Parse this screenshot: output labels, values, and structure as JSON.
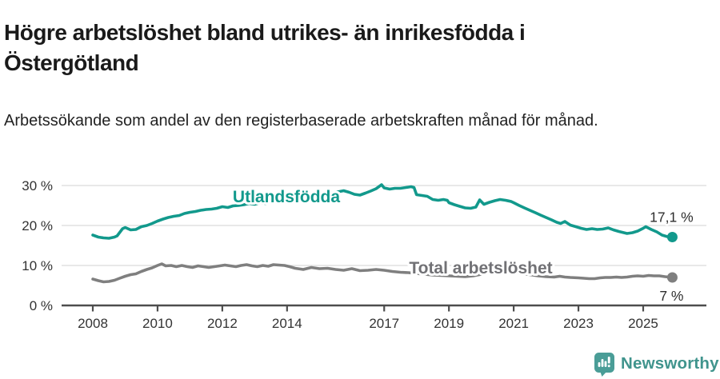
{
  "title": "Högre arbetslöshet bland utrikes- än inrikesfödda i Östergötland",
  "subtitle": "Arbetssökande som andel av den registerbaserade arbetskraften månad för månad.",
  "footer": {
    "brand": "Newsworthy",
    "logo_icon": "bar-chart-speech-bubble-icon"
  },
  "colors": {
    "teal": "#12998C",
    "gray": "#7F7F7F",
    "gray_label": "#717175",
    "gridline": "#DBDBDB",
    "axis": "#4D4D4D",
    "tick_text": "#333333",
    "title_text": "#1A1A1A",
    "body_text": "#222222",
    "end_label_text": "#2E2E2E",
    "logo_teal": "#4A9D97",
    "wordmark_teal": "#40948D"
  },
  "chart_data": {
    "type": "line",
    "unit": "%",
    "grid": "horizontal",
    "x_axis": {
      "range": [
        2007.85,
        2026.2
      ],
      "ticks": [
        {
          "value": 2008,
          "label": "2008"
        },
        {
          "value": 2010,
          "label": "2010"
        },
        {
          "value": 2012,
          "label": "2012"
        },
        {
          "value": 2014,
          "label": "2014"
        },
        {
          "value": 2017,
          "label": "2017"
        },
        {
          "value": 2019,
          "label": "2019"
        },
        {
          "value": 2021,
          "label": "2021"
        },
        {
          "value": 2023,
          "label": "2023"
        },
        {
          "value": 2025,
          "label": "2025"
        }
      ]
    },
    "y_axis": {
      "range": [
        0,
        32
      ],
      "ticks": [
        {
          "value": 0,
          "label": "0 %"
        },
        {
          "value": 10,
          "label": "10 %"
        },
        {
          "value": 20,
          "label": "20 %"
        },
        {
          "value": 30,
          "label": "30 %"
        }
      ]
    },
    "series": [
      {
        "name": "Utlandsfödda",
        "color": "#12998C",
        "end_label": "17,1 %",
        "points": [
          [
            2008.0,
            17.6
          ],
          [
            2008.17,
            17.1
          ],
          [
            2008.33,
            16.9
          ],
          [
            2008.5,
            16.8
          ],
          [
            2008.67,
            17.1
          ],
          [
            2008.75,
            17.4
          ],
          [
            2008.92,
            19.2
          ],
          [
            2009.0,
            19.5
          ],
          [
            2009.17,
            18.9
          ],
          [
            2009.33,
            19.0
          ],
          [
            2009.5,
            19.7
          ],
          [
            2009.67,
            20.0
          ],
          [
            2009.83,
            20.5
          ],
          [
            2010.0,
            21.1
          ],
          [
            2010.17,
            21.6
          ],
          [
            2010.33,
            22.0
          ],
          [
            2010.5,
            22.3
          ],
          [
            2010.67,
            22.5
          ],
          [
            2010.83,
            23.0
          ],
          [
            2011.0,
            23.3
          ],
          [
            2011.17,
            23.5
          ],
          [
            2011.33,
            23.8
          ],
          [
            2011.5,
            24.0
          ],
          [
            2011.67,
            24.1
          ],
          [
            2011.83,
            24.3
          ],
          [
            2012.0,
            24.7
          ],
          [
            2012.17,
            24.5
          ],
          [
            2012.33,
            24.9
          ],
          [
            2012.5,
            25.0
          ],
          [
            2012.67,
            25.2
          ],
          [
            2012.83,
            25.5
          ],
          [
            2013.0,
            25.3
          ],
          [
            2013.17,
            25.7
          ],
          [
            2013.33,
            25.5
          ],
          [
            2013.5,
            26.0
          ],
          [
            2013.67,
            25.9
          ],
          [
            2013.83,
            26.1
          ],
          [
            2014.0,
            26.3
          ],
          [
            2014.25,
            26.6
          ],
          [
            2014.5,
            26.9
          ],
          [
            2014.75,
            27.2
          ],
          [
            2015.0,
            27.5
          ],
          [
            2015.25,
            27.9
          ],
          [
            2015.5,
            28.3
          ],
          [
            2015.75,
            28.7
          ],
          [
            2015.92,
            28.3
          ],
          [
            2016.08,
            27.8
          ],
          [
            2016.25,
            27.6
          ],
          [
            2016.42,
            28.1
          ],
          [
            2016.58,
            28.6
          ],
          [
            2016.75,
            29.2
          ],
          [
            2016.92,
            30.2
          ],
          [
            2017.0,
            29.4
          ],
          [
            2017.17,
            29.1
          ],
          [
            2017.33,
            29.3
          ],
          [
            2017.5,
            29.3
          ],
          [
            2017.67,
            29.5
          ],
          [
            2017.83,
            29.7
          ],
          [
            2017.92,
            29.5
          ],
          [
            2018.0,
            27.7
          ],
          [
            2018.17,
            27.5
          ],
          [
            2018.33,
            27.3
          ],
          [
            2018.5,
            26.5
          ],
          [
            2018.67,
            26.3
          ],
          [
            2018.83,
            26.5
          ],
          [
            2018.95,
            26.3
          ],
          [
            2019.0,
            25.7
          ],
          [
            2019.17,
            25.2
          ],
          [
            2019.33,
            24.8
          ],
          [
            2019.5,
            24.4
          ],
          [
            2019.67,
            24.3
          ],
          [
            2019.83,
            24.6
          ],
          [
            2019.95,
            26.4
          ],
          [
            2020.08,
            25.3
          ],
          [
            2020.25,
            25.8
          ],
          [
            2020.42,
            26.2
          ],
          [
            2020.58,
            26.5
          ],
          [
            2020.75,
            26.3
          ],
          [
            2020.92,
            26.0
          ],
          [
            2021.0,
            25.7
          ],
          [
            2021.17,
            25.0
          ],
          [
            2021.33,
            24.4
          ],
          [
            2021.5,
            23.8
          ],
          [
            2021.67,
            23.2
          ],
          [
            2021.83,
            22.6
          ],
          [
            2022.0,
            22.0
          ],
          [
            2022.17,
            21.4
          ],
          [
            2022.33,
            20.8
          ],
          [
            2022.45,
            20.5
          ],
          [
            2022.58,
            21.0
          ],
          [
            2022.75,
            20.1
          ],
          [
            2022.92,
            19.7
          ],
          [
            2023.08,
            19.3
          ],
          [
            2023.25,
            19.0
          ],
          [
            2023.42,
            19.2
          ],
          [
            2023.58,
            19.0
          ],
          [
            2023.75,
            19.1
          ],
          [
            2023.92,
            19.4
          ],
          [
            2024.08,
            18.9
          ],
          [
            2024.25,
            18.5
          ],
          [
            2024.5,
            18.0
          ],
          [
            2024.67,
            18.2
          ],
          [
            2024.83,
            18.6
          ],
          [
            2025.0,
            19.3
          ],
          [
            2025.08,
            19.7
          ],
          [
            2025.25,
            19.0
          ],
          [
            2025.42,
            18.4
          ],
          [
            2025.58,
            17.6
          ],
          [
            2025.75,
            17.2
          ],
          [
            2025.9,
            17.1
          ]
        ]
      },
      {
        "name": "Total arbetslöshet",
        "color": "#7F7F7F",
        "end_label": "7 %",
        "points": [
          [
            2008.0,
            6.6
          ],
          [
            2008.17,
            6.2
          ],
          [
            2008.33,
            5.9
          ],
          [
            2008.5,
            6.0
          ],
          [
            2008.67,
            6.3
          ],
          [
            2008.83,
            6.8
          ],
          [
            2009.0,
            7.3
          ],
          [
            2009.17,
            7.7
          ],
          [
            2009.33,
            7.9
          ],
          [
            2009.5,
            8.5
          ],
          [
            2009.67,
            9.0
          ],
          [
            2009.83,
            9.4
          ],
          [
            2010.0,
            10.0
          ],
          [
            2010.13,
            10.4
          ],
          [
            2010.25,
            9.9
          ],
          [
            2010.42,
            10.0
          ],
          [
            2010.58,
            9.7
          ],
          [
            2010.75,
            10.0
          ],
          [
            2010.92,
            9.7
          ],
          [
            2011.08,
            9.5
          ],
          [
            2011.25,
            9.9
          ],
          [
            2011.42,
            9.7
          ],
          [
            2011.58,
            9.5
          ],
          [
            2011.75,
            9.7
          ],
          [
            2011.92,
            9.9
          ],
          [
            2012.08,
            10.1
          ],
          [
            2012.25,
            9.9
          ],
          [
            2012.42,
            9.7
          ],
          [
            2012.58,
            10.0
          ],
          [
            2012.75,
            10.2
          ],
          [
            2012.92,
            9.9
          ],
          [
            2013.08,
            9.7
          ],
          [
            2013.25,
            10.0
          ],
          [
            2013.42,
            9.8
          ],
          [
            2013.58,
            10.2
          ],
          [
            2013.75,
            10.1
          ],
          [
            2013.92,
            10.0
          ],
          [
            2014.08,
            9.7
          ],
          [
            2014.25,
            9.3
          ],
          [
            2014.5,
            9.0
          ],
          [
            2014.75,
            9.5
          ],
          [
            2015.0,
            9.2
          ],
          [
            2015.25,
            9.3
          ],
          [
            2015.5,
            9.0
          ],
          [
            2015.75,
            8.8
          ],
          [
            2016.0,
            9.2
          ],
          [
            2016.25,
            8.7
          ],
          [
            2016.5,
            8.8
          ],
          [
            2016.75,
            9.0
          ],
          [
            2017.0,
            8.8
          ],
          [
            2017.25,
            8.5
          ],
          [
            2017.5,
            8.3
          ],
          [
            2017.75,
            8.2
          ],
          [
            2018.0,
            8.0
          ],
          [
            2018.25,
            7.8
          ],
          [
            2018.5,
            7.6
          ],
          [
            2018.75,
            7.5
          ],
          [
            2019.0,
            7.4
          ],
          [
            2019.25,
            7.3
          ],
          [
            2019.5,
            7.2
          ],
          [
            2019.75,
            7.4
          ],
          [
            2020.0,
            7.8
          ],
          [
            2020.25,
            8.6
          ],
          [
            2020.5,
            8.8
          ],
          [
            2020.75,
            8.6
          ],
          [
            2021.0,
            8.3
          ],
          [
            2021.25,
            8.0
          ],
          [
            2021.5,
            7.7
          ],
          [
            2021.75,
            7.4
          ],
          [
            2022.0,
            7.2
          ],
          [
            2022.25,
            7.1
          ],
          [
            2022.42,
            7.3
          ],
          [
            2022.58,
            7.1
          ],
          [
            2022.75,
            7.0
          ],
          [
            2023.0,
            6.9
          ],
          [
            2023.17,
            6.8
          ],
          [
            2023.33,
            6.7
          ],
          [
            2023.5,
            6.7
          ],
          [
            2023.67,
            6.9
          ],
          [
            2023.83,
            7.0
          ],
          [
            2024.0,
            7.0
          ],
          [
            2024.17,
            7.1
          ],
          [
            2024.33,
            7.0
          ],
          [
            2024.5,
            7.1
          ],
          [
            2024.67,
            7.3
          ],
          [
            2024.83,
            7.4
          ],
          [
            2025.0,
            7.3
          ],
          [
            2025.17,
            7.5
          ],
          [
            2025.33,
            7.4
          ],
          [
            2025.5,
            7.4
          ],
          [
            2025.67,
            7.2
          ],
          [
            2025.9,
            7.0
          ]
        ]
      }
    ]
  }
}
